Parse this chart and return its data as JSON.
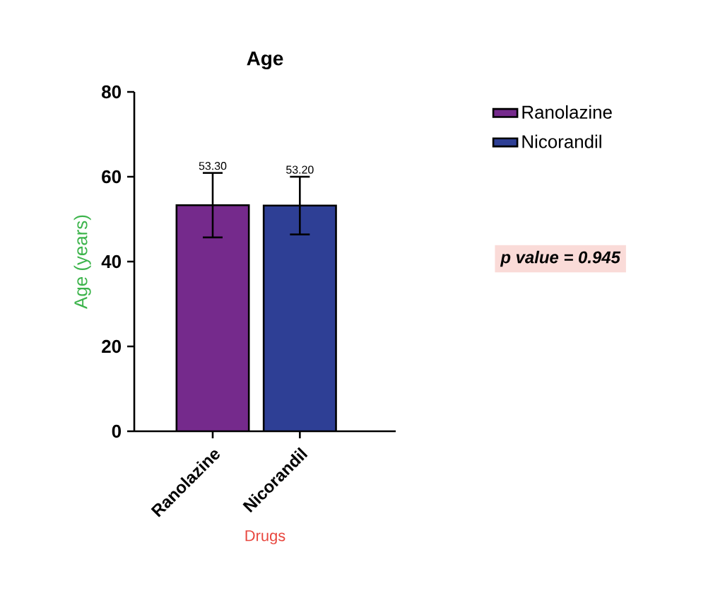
{
  "chart_data": {
    "type": "bar",
    "title": "Age",
    "xlabel": "Drugs",
    "ylabel": "Age (years)",
    "categories": [
      "Ranolazine",
      "Nicorandil"
    ],
    "series": [
      {
        "name": "Ranolazine",
        "color": "#752a8c",
        "values": [
          53.3,
          null
        ],
        "errors": [
          7.6,
          null
        ],
        "value_labels": [
          "53.30",
          null
        ]
      },
      {
        "name": "Nicorandil",
        "color": "#2e3f95",
        "values": [
          null,
          53.2
        ],
        "errors": [
          null,
          6.8
        ],
        "value_labels": [
          null,
          "53.20"
        ]
      }
    ],
    "ylim": [
      0,
      80
    ],
    "yticks": [
      0,
      20,
      40,
      60,
      80
    ],
    "legend": "right",
    "annotations": [
      "p value = 0.945"
    ]
  }
}
